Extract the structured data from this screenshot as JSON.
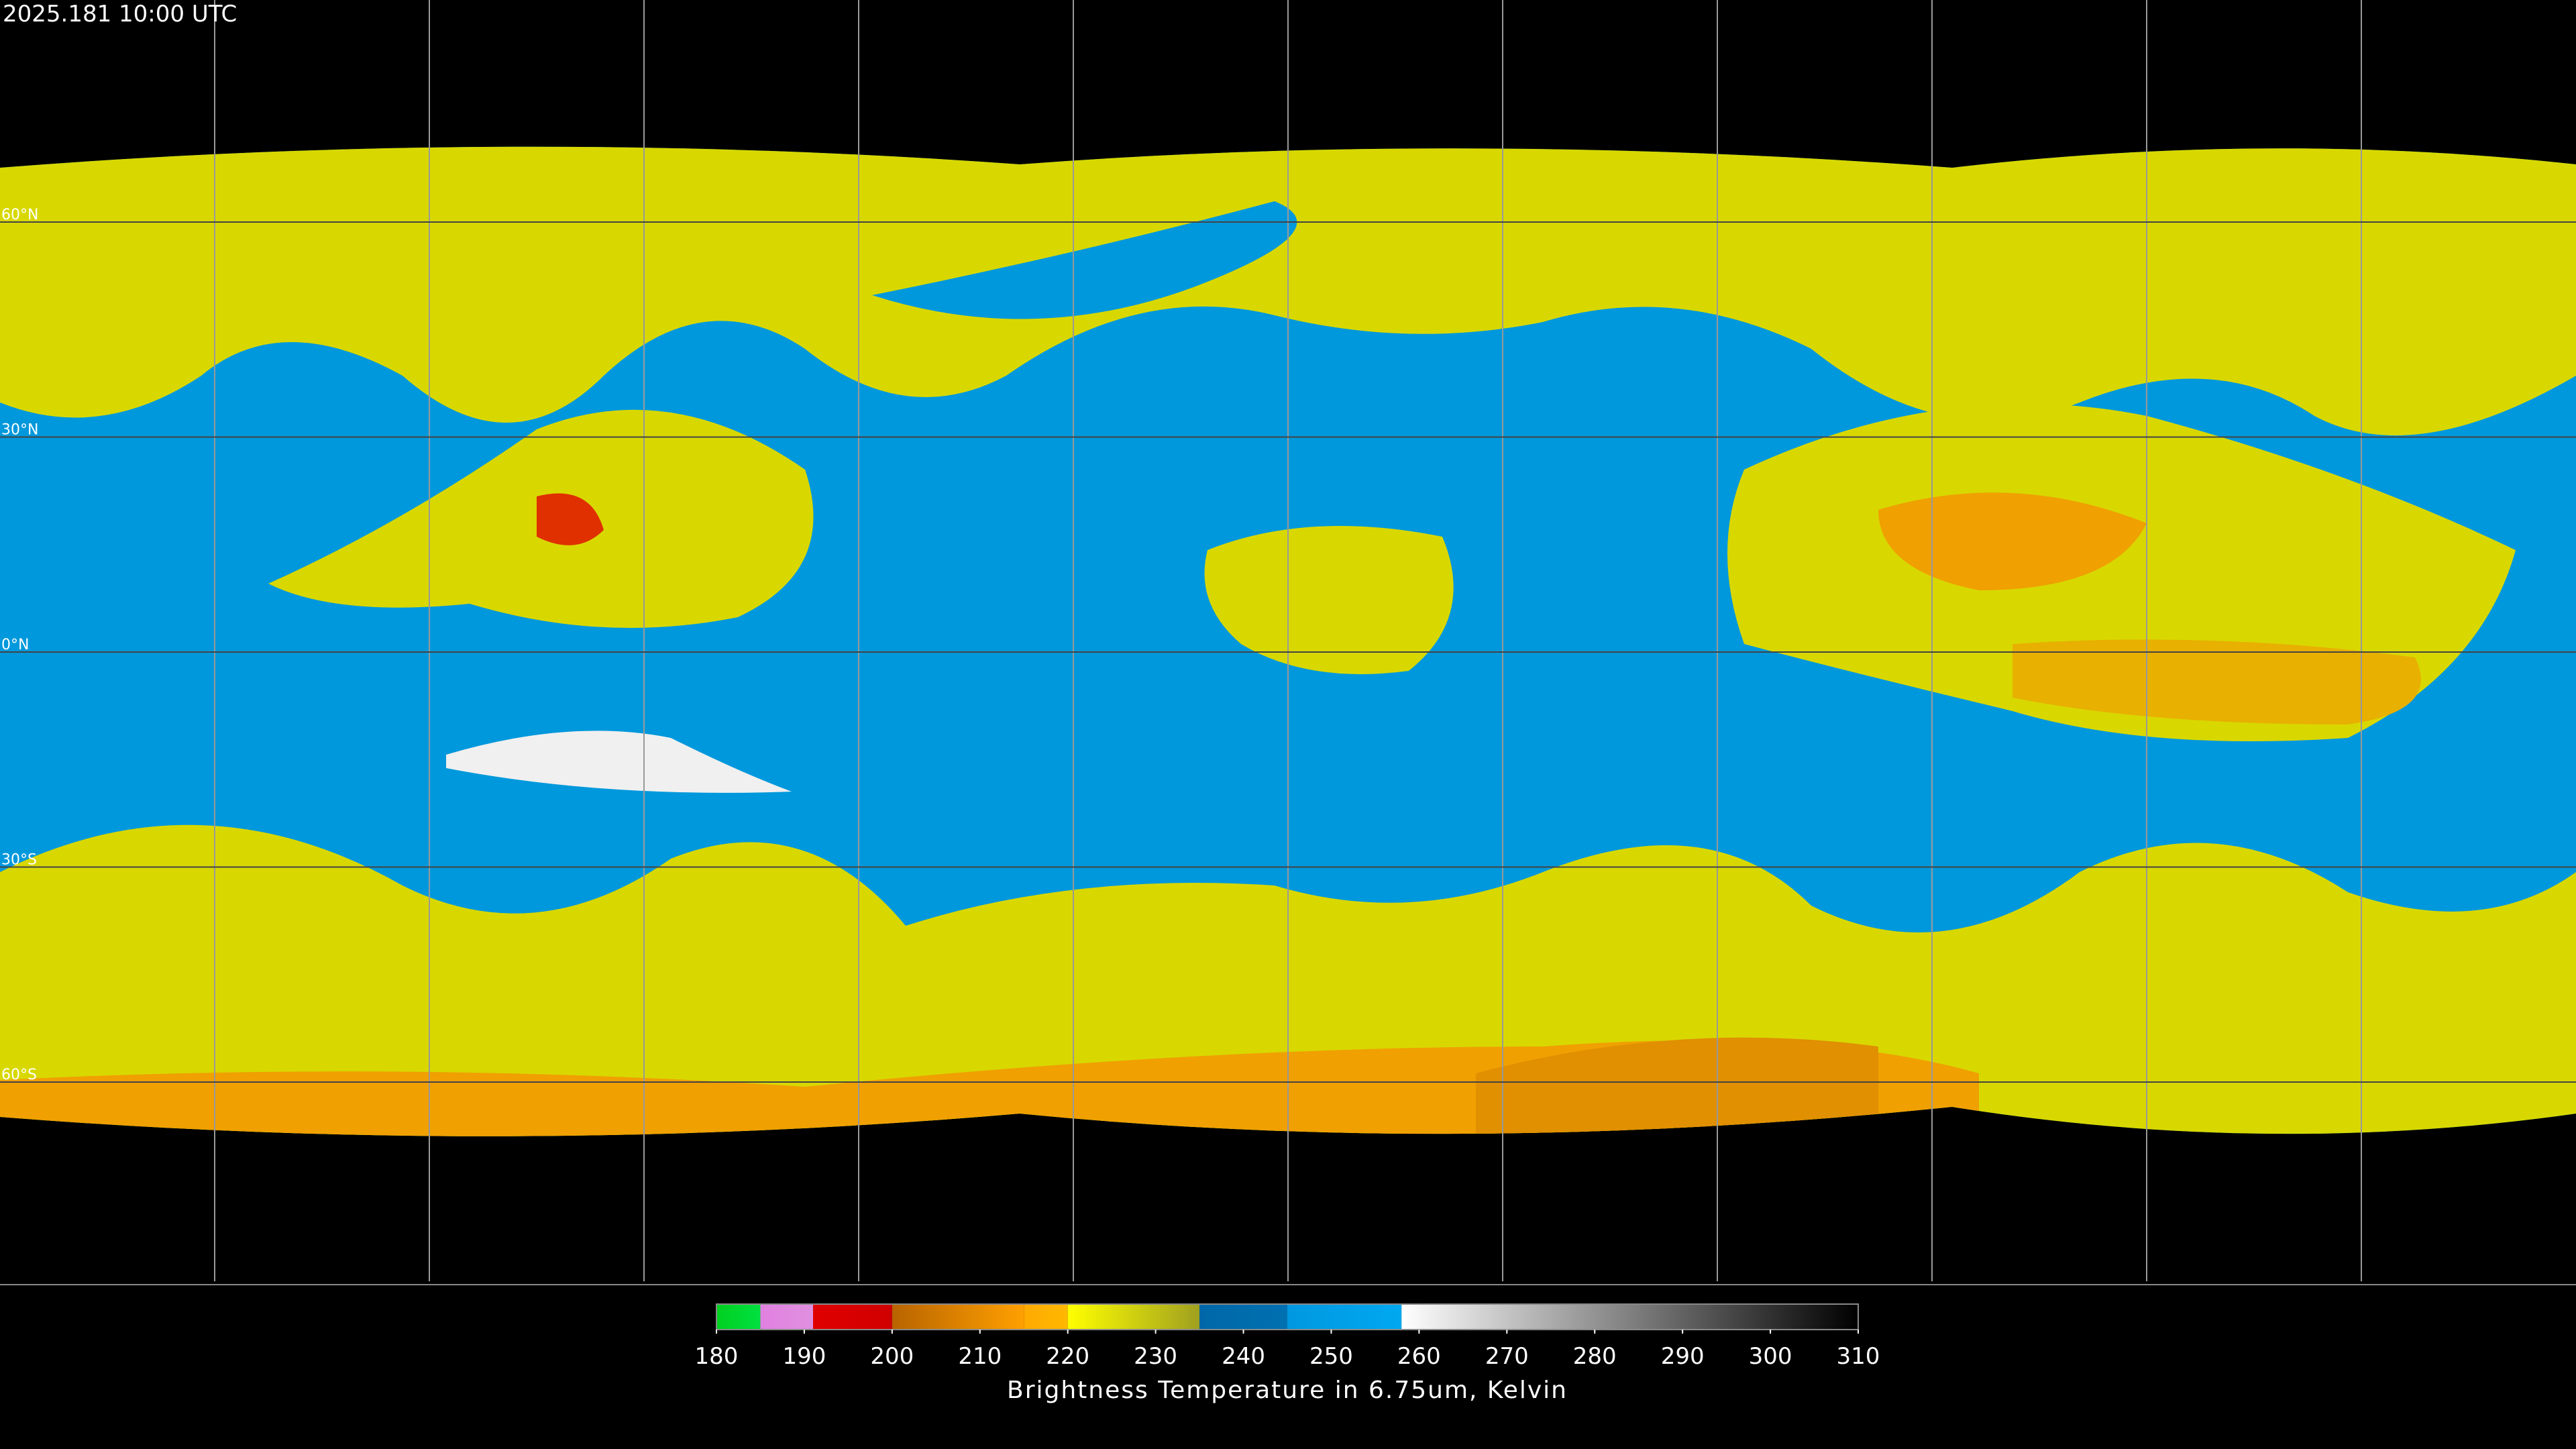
{
  "header": {
    "timestamp": "2025.181 10:00 UTC"
  },
  "map": {
    "lat_labels": [
      "60°N",
      "30°N",
      "0°N",
      "30°S",
      "60°S"
    ]
  },
  "colorbar": {
    "label": "Brightness Temperature in 6.75um, Kelvin",
    "lim": [
      180,
      310
    ],
    "ticks": [
      180,
      190,
      200,
      210,
      220,
      230,
      240,
      250,
      260,
      270,
      280,
      290,
      300,
      310
    ],
    "segments": [
      {
        "from": 180,
        "to": 185,
        "colors": [
          "#00d020",
          "#00e040"
        ]
      },
      {
        "from": 185,
        "to": 191,
        "colors": [
          "#e080e0",
          "#e090e0"
        ]
      },
      {
        "from": 191,
        "to": 200,
        "colors": [
          "#e00000",
          "#d00000"
        ]
      },
      {
        "from": 200,
        "to": 215,
        "colors": [
          "#b86400",
          "#ffa000"
        ]
      },
      {
        "from": 215,
        "to": 220,
        "colors": [
          "#ffaa00",
          "#ffb800"
        ]
      },
      {
        "from": 220,
        "to": 235,
        "colors": [
          "#ffff00",
          "#a0a020"
        ]
      },
      {
        "from": 235,
        "to": 245,
        "colors": [
          "#0068a8",
          "#0070b0"
        ]
      },
      {
        "from": 245,
        "to": 258,
        "colors": [
          "#0098e0",
          "#00a8f0"
        ]
      },
      {
        "from": 258,
        "to": 310,
        "colors": [
          "#ffffff",
          "#000000"
        ]
      }
    ]
  }
}
